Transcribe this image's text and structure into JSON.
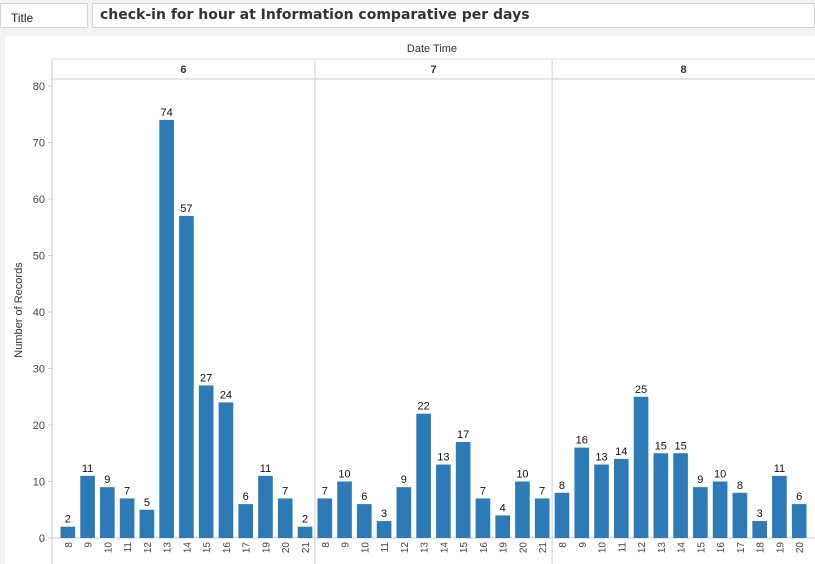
{
  "title_field": {
    "label": "Title",
    "value": "check-in for hour at Information comparative per days"
  },
  "chart_data": {
    "type": "bar",
    "title": "",
    "column_header": "Date Time",
    "ylabel": "Number of Records",
    "ylim": [
      0,
      80
    ],
    "yticks": [
      0,
      10,
      20,
      30,
      40,
      50,
      60,
      70,
      80
    ],
    "bar_color": "#2c7bb6",
    "grid": false,
    "data_labels": true,
    "panels": [
      {
        "name": "6",
        "categories": [
          "8",
          "9",
          "10",
          "11",
          "12",
          "13",
          "14",
          "15",
          "16",
          "17",
          "19",
          "20",
          "21"
        ],
        "values": [
          2,
          11,
          9,
          7,
          5,
          74,
          57,
          27,
          24,
          6,
          11,
          7,
          2
        ]
      },
      {
        "name": "7",
        "categories": [
          "8",
          "9",
          "10",
          "11",
          "12",
          "13",
          "14",
          "15",
          "16",
          "19",
          "20",
          "21"
        ],
        "values": [
          7,
          10,
          6,
          3,
          9,
          22,
          13,
          17,
          7,
          4,
          10,
          7
        ]
      },
      {
        "name": "8",
        "categories": [
          "8",
          "9",
          "10",
          "11",
          "12",
          "13",
          "14",
          "15",
          "16",
          "17",
          "18",
          "19",
          "20"
        ],
        "values": [
          8,
          16,
          13,
          14,
          25,
          15,
          15,
          9,
          10,
          8,
          3,
          11,
          6
        ]
      }
    ]
  }
}
